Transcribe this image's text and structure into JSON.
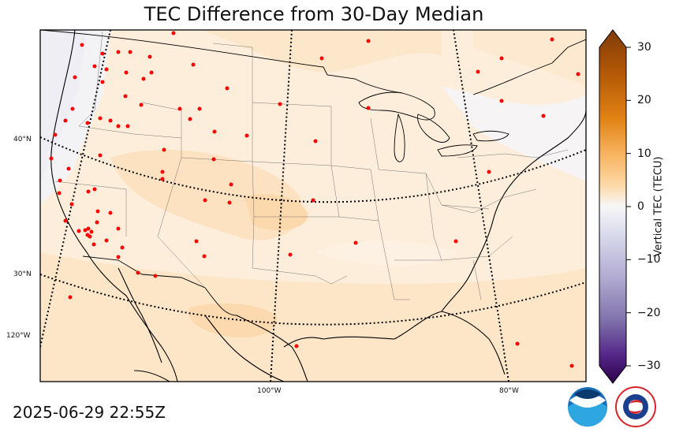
{
  "title": "TEC Difference from 30-Day Median",
  "timestamp": "2025-06-29 22:55Z",
  "colorbar": {
    "label": "Vertical TEC (TECU)",
    "ticks": [
      30,
      20,
      10,
      0,
      -10,
      -20,
      -30
    ],
    "tick_labels": [
      "30",
      "20",
      "10",
      "0",
      "−10",
      "−20",
      "−30"
    ],
    "range": [
      -30,
      30
    ]
  },
  "graticule": {
    "lat_labels": [
      "40°N",
      "30°N",
      "120°W"
    ],
    "lon_labels": [
      "100°W",
      "80°W"
    ]
  },
  "colors": {
    "station": "#ff0000",
    "field_low": "#fdf1e2",
    "field_mid": "#fde4c6",
    "field_high": "#fcd6a8",
    "negative": "#eeeef4"
  },
  "logos": {
    "noaa": "NOAA",
    "nws": "NATIONAL WEATHER SERVICE"
  }
}
